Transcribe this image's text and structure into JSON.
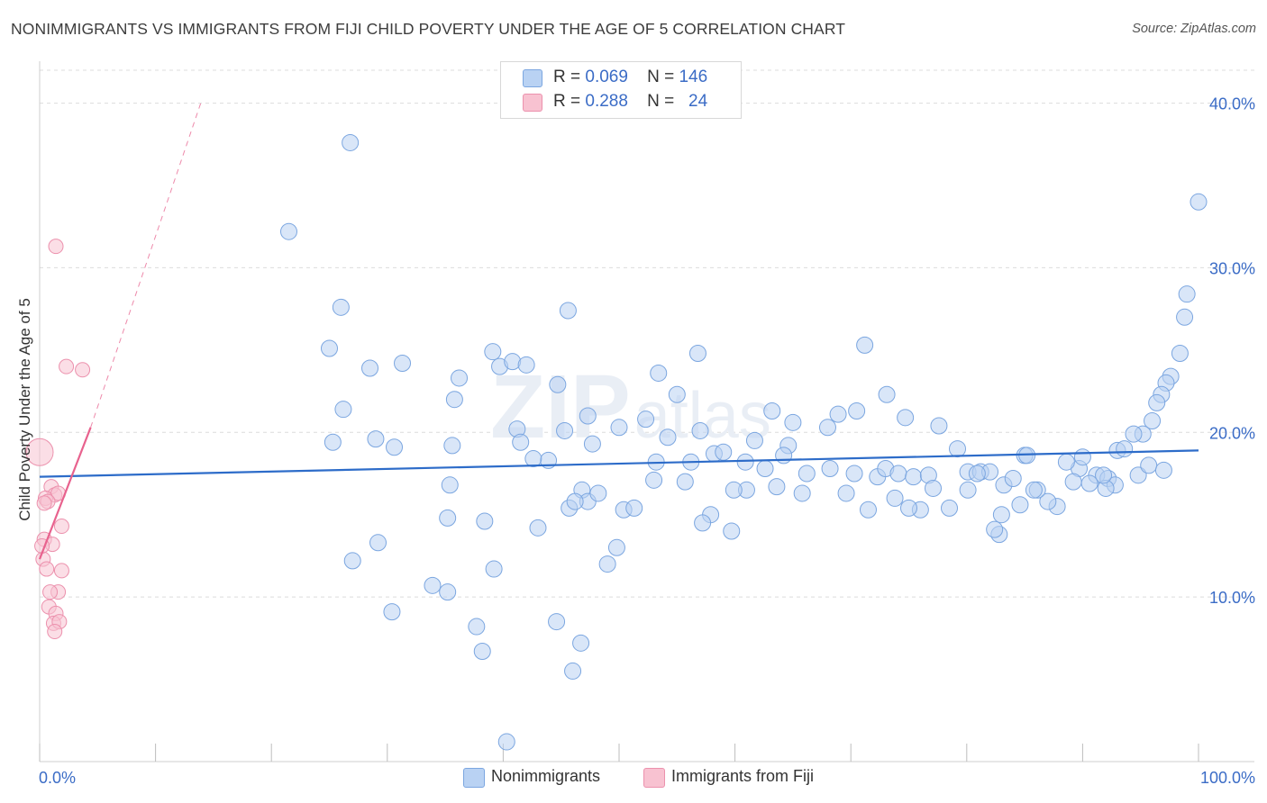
{
  "title": "NONIMMIGRANTS VS IMMIGRANTS FROM FIJI CHILD POVERTY UNDER THE AGE OF 5 CORRELATION CHART",
  "source": "Source: ZipAtlas.com",
  "legend": {
    "rows": [
      {
        "r_label": "R =",
        "r_value": "0.069",
        "n_label": "N =",
        "n_value": "146"
      },
      {
        "r_label": "R =",
        "r_value": "0.288",
        "n_label": "N =",
        "n_value": "24"
      }
    ]
  },
  "colors": {
    "blue_fill": "#b9d2f3",
    "blue_stroke": "#7ba6e0",
    "blue_line": "#2d6cc9",
    "pink_fill": "#f8c2d1",
    "pink_stroke": "#ec91ad",
    "pink_line": "#e8628e",
    "tick_label": "#3b6cc6",
    "grid": "#dcdcdc"
  },
  "chart_data": {
    "type": "scatter",
    "ylabel": "Child Poverty Under the Age of 5",
    "x_tick_labels": [
      "0.0%",
      "100.0%"
    ],
    "y_tick_labels": [
      "10.0%",
      "20.0%",
      "30.0%",
      "40.0%"
    ],
    "y_ticks": [
      10,
      20,
      30,
      40
    ],
    "xlim": [
      0,
      100
    ],
    "ylim": [
      0,
      42
    ],
    "grid": "horizontal dashed",
    "watermark": "ZIPatlas",
    "series": [
      {
        "name": "Nonimmigrants",
        "color": "#b9d2f3",
        "trend": {
          "x": [
            0,
            100
          ],
          "y": [
            17.3,
            18.9
          ]
        },
        "points": [
          [
            26.8,
            37.6
          ],
          [
            21.5,
            32.2
          ],
          [
            26.0,
            27.6
          ],
          [
            45.6,
            27.4
          ],
          [
            25.0,
            25.1
          ],
          [
            71.2,
            25.3
          ],
          [
            28.5,
            23.9
          ],
          [
            31.3,
            24.2
          ],
          [
            39.1,
            24.9
          ],
          [
            39.7,
            24.0
          ],
          [
            40.8,
            24.3
          ],
          [
            42.0,
            24.1
          ],
          [
            53.4,
            23.6
          ],
          [
            56.8,
            24.8
          ],
          [
            36.2,
            23.3
          ],
          [
            44.7,
            22.9
          ],
          [
            55.0,
            22.3
          ],
          [
            73.1,
            22.3
          ],
          [
            26.2,
            21.4
          ],
          [
            35.8,
            22.0
          ],
          [
            47.3,
            21.0
          ],
          [
            52.3,
            20.8
          ],
          [
            63.2,
            21.3
          ],
          [
            65.0,
            20.6
          ],
          [
            68.9,
            21.1
          ],
          [
            70.5,
            21.3
          ],
          [
            74.7,
            20.9
          ],
          [
            77.6,
            20.4
          ],
          [
            41.2,
            20.2
          ],
          [
            45.3,
            20.1
          ],
          [
            50.0,
            20.3
          ],
          [
            57.0,
            20.1
          ],
          [
            25.3,
            19.4
          ],
          [
            29.0,
            19.6
          ],
          [
            30.6,
            19.1
          ],
          [
            41.5,
            19.4
          ],
          [
            47.7,
            19.3
          ],
          [
            54.2,
            19.7
          ],
          [
            61.7,
            19.5
          ],
          [
            64.6,
            19.2
          ],
          [
            68.0,
            20.3
          ],
          [
            79.2,
            19.0
          ],
          [
            35.6,
            19.2
          ],
          [
            43.9,
            18.3
          ],
          [
            53.2,
            18.2
          ],
          [
            56.2,
            18.2
          ],
          [
            58.2,
            18.7
          ],
          [
            59.0,
            18.8
          ],
          [
            60.9,
            18.2
          ],
          [
            62.6,
            17.8
          ],
          [
            64.2,
            18.6
          ],
          [
            66.2,
            17.5
          ],
          [
            68.2,
            17.8
          ],
          [
            70.3,
            17.5
          ],
          [
            72.3,
            17.3
          ],
          [
            73.0,
            17.8
          ],
          [
            74.1,
            17.5
          ],
          [
            75.4,
            17.3
          ],
          [
            76.7,
            17.4
          ],
          [
            80.1,
            17.6
          ],
          [
            81.2,
            17.6
          ],
          [
            82.0,
            17.6
          ],
          [
            83.2,
            16.8
          ],
          [
            84.0,
            17.2
          ],
          [
            85.0,
            18.6
          ],
          [
            85.2,
            18.6
          ],
          [
            89.7,
            17.8
          ],
          [
            90.0,
            18.5
          ],
          [
            91.2,
            17.4
          ],
          [
            92.2,
            17.2
          ],
          [
            93.0,
            18.9
          ],
          [
            94.8,
            17.4
          ],
          [
            95.7,
            18.0
          ],
          [
            97.0,
            17.7
          ],
          [
            100.0,
            34.0
          ],
          [
            99.0,
            28.4
          ],
          [
            98.8,
            27.0
          ],
          [
            98.4,
            24.8
          ],
          [
            97.6,
            23.4
          ],
          [
            97.2,
            23.0
          ],
          [
            96.8,
            22.3
          ],
          [
            96.4,
            21.8
          ],
          [
            96.0,
            20.7
          ],
          [
            95.2,
            19.9
          ],
          [
            94.4,
            19.9
          ],
          [
            93.6,
            19.0
          ],
          [
            92.8,
            16.8
          ],
          [
            92.0,
            16.6
          ],
          [
            91.8,
            17.4
          ],
          [
            90.6,
            16.9
          ],
          [
            89.2,
            17.0
          ],
          [
            88.6,
            18.2
          ],
          [
            87.8,
            15.5
          ],
          [
            87.0,
            15.8
          ],
          [
            86.1,
            16.5
          ],
          [
            85.8,
            16.5
          ],
          [
            84.6,
            15.6
          ],
          [
            83.0,
            15.0
          ],
          [
            82.8,
            13.8
          ],
          [
            82.4,
            14.1
          ],
          [
            80.9,
            17.5
          ],
          [
            80.1,
            16.5
          ],
          [
            78.5,
            15.4
          ],
          [
            77.1,
            16.6
          ],
          [
            76.0,
            15.3
          ],
          [
            75.0,
            15.4
          ],
          [
            73.8,
            16.0
          ],
          [
            71.5,
            15.3
          ],
          [
            69.6,
            16.3
          ],
          [
            65.8,
            16.3
          ],
          [
            63.6,
            16.7
          ],
          [
            61.0,
            16.5
          ],
          [
            59.9,
            16.5
          ],
          [
            55.7,
            17.0
          ],
          [
            53.0,
            17.1
          ],
          [
            46.8,
            16.5
          ],
          [
            45.7,
            15.4
          ],
          [
            47.3,
            15.8
          ],
          [
            48.2,
            16.3
          ],
          [
            50.4,
            15.3
          ],
          [
            51.3,
            15.4
          ],
          [
            57.9,
            15.0
          ],
          [
            57.2,
            14.5
          ],
          [
            59.7,
            14.0
          ],
          [
            46.2,
            15.8
          ],
          [
            35.4,
            16.8
          ],
          [
            35.2,
            14.8
          ],
          [
            38.4,
            14.6
          ],
          [
            43.0,
            14.2
          ],
          [
            29.2,
            13.3
          ],
          [
            27.0,
            12.2
          ],
          [
            49.8,
            13.0
          ],
          [
            49.0,
            12.0
          ],
          [
            39.2,
            11.7
          ],
          [
            33.9,
            10.7
          ],
          [
            35.2,
            10.3
          ],
          [
            30.4,
            9.1
          ],
          [
            37.7,
            8.2
          ],
          [
            44.6,
            8.5
          ],
          [
            38.2,
            6.7
          ],
          [
            46.7,
            7.2
          ],
          [
            46.0,
            5.5
          ],
          [
            40.3,
            1.2
          ],
          [
            42.6,
            18.4
          ]
        ]
      },
      {
        "name": "Immigrants from Fiji",
        "color": "#f8c2d1",
        "trend": {
          "x": [
            0,
            4.4
          ],
          "y": [
            12.3,
            20.3
          ]
        },
        "trend_dashed": {
          "x": [
            4.4,
            13.9
          ],
          "y": [
            20.3,
            40.0
          ]
        },
        "points": [
          [
            0.0,
            18.8
          ],
          [
            1.4,
            31.3
          ],
          [
            2.3,
            24.0
          ],
          [
            3.7,
            23.8
          ],
          [
            1.0,
            16.7
          ],
          [
            1.3,
            16.2
          ],
          [
            1.6,
            16.3
          ],
          [
            0.5,
            16.0
          ],
          [
            0.7,
            15.8
          ],
          [
            1.9,
            14.3
          ],
          [
            0.4,
            13.5
          ],
          [
            1.1,
            13.2
          ],
          [
            0.3,
            12.3
          ],
          [
            0.6,
            11.7
          ],
          [
            1.9,
            11.6
          ],
          [
            1.6,
            10.3
          ],
          [
            0.9,
            10.3
          ],
          [
            0.8,
            9.4
          ],
          [
            1.4,
            9.0
          ],
          [
            1.2,
            8.4
          ],
          [
            1.7,
            8.5
          ],
          [
            1.3,
            7.9
          ],
          [
            0.2,
            13.1
          ],
          [
            0.4,
            15.7
          ]
        ]
      }
    ]
  },
  "bottom_legend": [
    {
      "label": "Nonimmigrants"
    },
    {
      "label": "Immigrants from Fiji"
    }
  ]
}
